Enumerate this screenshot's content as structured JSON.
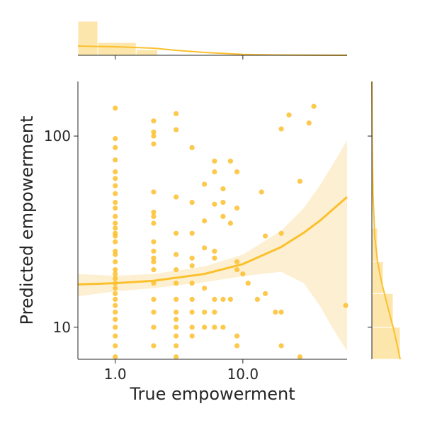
{
  "chart_data": {
    "type": "scatter",
    "x_label": "True empowerment",
    "y_label": "Predicted empowerment",
    "xscale": "log",
    "yscale": "log",
    "xlim": [
      0.51,
      65.6
    ],
    "ylim": [
      6.8,
      193
    ],
    "xticks": [
      {
        "value": 1,
        "label": "1.0"
      },
      {
        "value": 10,
        "label": "10.0"
      }
    ],
    "yticks": [
      10,
      100
    ],
    "color": "#fbc02d",
    "band_color": "#fdf0d2",
    "x": [
      1,
      1,
      1,
      1,
      1,
      1,
      1,
      1,
      1,
      1,
      1,
      1,
      1,
      1,
      1,
      1,
      1,
      1,
      1,
      1,
      1,
      1,
      1,
      1,
      1,
      1,
      1,
      1,
      1,
      1,
      1,
      1,
      1,
      2,
      2,
      2,
      2,
      2,
      2,
      2,
      2,
      2,
      2,
      2,
      2,
      2,
      2,
      2,
      2,
      2,
      2,
      3,
      3,
      3,
      3,
      3,
      3,
      3,
      3,
      3,
      3,
      3,
      3,
      3,
      3,
      4,
      4,
      4,
      4,
      4,
      4,
      4,
      4,
      4,
      4,
      5,
      5,
      5,
      5,
      5,
      5,
      6,
      6,
      6,
      6,
      6,
      6,
      6,
      6,
      7,
      7,
      7,
      7,
      7,
      8,
      8,
      8,
      9,
      9,
      9,
      9,
      9,
      9,
      10,
      11,
      13,
      14,
      15,
      15,
      18,
      20,
      20,
      20,
      20,
      23,
      28,
      28,
      33,
      36,
      64
    ],
    "y": [
      140,
      97,
      87,
      75,
      65,
      60,
      55,
      50,
      45,
      42,
      38,
      35,
      33,
      31,
      30,
      28,
      25,
      24,
      22,
      20,
      19,
      18,
      17,
      16,
      15,
      14,
      13,
      12,
      11,
      10,
      9,
      8,
      7,
      120,
      105,
      100,
      91,
      51,
      40,
      38,
      35,
      28,
      25,
      23,
      22,
      20,
      17,
      14,
      12,
      10,
      8,
      131,
      108,
      48,
      31,
      24,
      20,
      17,
      14,
      12,
      11,
      10,
      9,
      8,
      7,
      87,
      45,
      31,
      23,
      21,
      17,
      14,
      12,
      10,
      9,
      56,
      36,
      26,
      16,
      12,
      10,
      74,
      65,
      44,
      25,
      23,
      14,
      12,
      10,
      53,
      45,
      38,
      14,
      10,
      74,
      35,
      14,
      65,
      42,
      22,
      20,
      9,
      8,
      19,
      17,
      14,
      51,
      30,
      15,
      12,
      109,
      31,
      12,
      8,
      129,
      58,
      7,
      117,
      143,
      13
    ],
    "regression": {
      "x": [
        0.51,
        1,
        2,
        5,
        10,
        20,
        30,
        40,
        50,
        65.6
      ],
      "y": [
        16.75,
        17,
        17.5,
        19,
        21.4,
        26.3,
        31.2,
        36,
        41,
        48
      ],
      "ci_upper": [
        19,
        18.6,
        19,
        20.8,
        24,
        32,
        42,
        55,
        70,
        95
      ],
      "ci_lower": [
        14.5,
        15.4,
        16,
        17.2,
        18.5,
        19.5,
        17,
        13,
        10,
        7.5
      ]
    },
    "marginal_x": {
      "bins": [
        0.51,
        0.73,
        1.46,
        2.15
      ],
      "values": [
        48,
        18,
        8
      ],
      "ylim": [
        0,
        50
      ],
      "kde_x": [
        0.51,
        1,
        2,
        3,
        5,
        10,
        20,
        40,
        65.6
      ],
      "kde_y": [
        13,
        12,
        10,
        7,
        4,
        1.2,
        0.4,
        0.1,
        0
      ]
    },
    "marginal_y": {
      "bins": [
        6.8,
        10,
        15,
        22,
        33
      ],
      "values": [
        20,
        15,
        8,
        4
      ],
      "xlim": [
        0,
        25
      ],
      "kde_y": [
        6.8,
        8,
        10,
        13,
        17,
        22,
        30,
        50,
        100,
        193
      ],
      "kde_x": [
        20,
        18,
        15,
        11,
        7,
        4,
        2,
        0.8,
        0.2,
        0
      ]
    }
  }
}
